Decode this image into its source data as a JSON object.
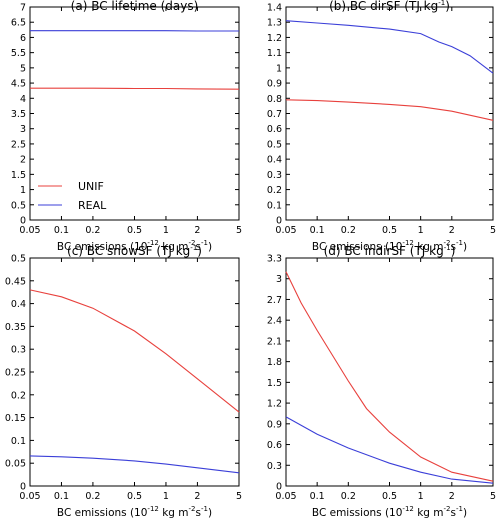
{
  "colors": {
    "unif": "#e8413d",
    "real": "#3b3fd8",
    "axis": "#000000"
  },
  "chart_data": [
    {
      "type": "line",
      "title": "(a) BC lifetime (days)",
      "x_scale": "log",
      "x_ticks": [
        "0.05",
        "0.1",
        "0.2",
        "0.5",
        "1",
        "2",
        "5"
      ],
      "x_tick_values": [
        0.05,
        0.1,
        0.2,
        0.5,
        1,
        2,
        5
      ],
      "xlabel": {
        "prefix": "BC emissions (10",
        "exp1": "-12",
        "mid": " kg m",
        "exp2": "-2",
        "mid2": "s",
        "exp3": "-1",
        "suffix": ")"
      },
      "ylim": [
        0,
        7
      ],
      "y_ticks": [
        "0",
        "0.5",
        "1",
        "1.5",
        "2",
        "2.5",
        "3",
        "3.5",
        "4",
        "4.5",
        "5",
        "5.5",
        "6",
        "6.5",
        "7"
      ],
      "y_tick_values": [
        0,
        0.5,
        1,
        1.5,
        2,
        2.5,
        3,
        3.5,
        4,
        4.5,
        5,
        5.5,
        6,
        6.5,
        7
      ],
      "legend": {
        "position": "bottom-left",
        "entries": [
          "UNIF",
          "REAL"
        ]
      },
      "series": [
        {
          "name": "UNIF",
          "color_key": "unif",
          "x": [
            0.05,
            0.1,
            0.2,
            0.5,
            1,
            2,
            5
          ],
          "y": [
            4.33,
            4.33,
            4.33,
            4.32,
            4.32,
            4.31,
            4.3
          ]
        },
        {
          "name": "REAL",
          "color_key": "real",
          "x": [
            0.05,
            0.1,
            0.2,
            0.5,
            1,
            2,
            5
          ],
          "y": [
            6.22,
            6.22,
            6.22,
            6.22,
            6.22,
            6.21,
            6.21
          ]
        }
      ]
    },
    {
      "type": "line",
      "title": "(b) BC dirSF (TJ kg",
      "title_exp": "-1",
      "title_close": ")",
      "x_scale": "log",
      "x_ticks": [
        "0.05",
        "0.1",
        "0.2",
        "0.5",
        "1",
        "2",
        "5"
      ],
      "x_tick_values": [
        0.05,
        0.1,
        0.2,
        0.5,
        1,
        2,
        5
      ],
      "xlabel": {
        "prefix": "BC emissions (10",
        "exp1": "-12",
        "mid": " kg m",
        "exp2": "-2",
        "mid2": "s",
        "exp3": "-1",
        "suffix": ")"
      },
      "ylim": [
        0,
        1.4
      ],
      "y_ticks": [
        "0",
        "0.1",
        "0.2",
        "0.3",
        "0.4",
        "0.5",
        "0.6",
        "0.7",
        "0.8",
        "0.9",
        "1",
        "1.1",
        "1.2",
        "1.3",
        "1.4"
      ],
      "y_tick_values": [
        0,
        0.1,
        0.2,
        0.3,
        0.4,
        0.5,
        0.6,
        0.7,
        0.8,
        0.9,
        1,
        1.1,
        1.2,
        1.3,
        1.4
      ],
      "series": [
        {
          "name": "UNIF",
          "color_key": "unif",
          "x": [
            0.05,
            0.1,
            0.2,
            0.5,
            1,
            2,
            5
          ],
          "y": [
            0.79,
            0.785,
            0.775,
            0.76,
            0.745,
            0.715,
            0.655
          ]
        },
        {
          "name": "REAL",
          "color_key": "real",
          "x": [
            0.05,
            0.1,
            0.2,
            0.5,
            1,
            1.5,
            2,
            3,
            5
          ],
          "y": [
            1.31,
            1.295,
            1.28,
            1.255,
            1.225,
            1.17,
            1.14,
            1.08,
            0.965
          ]
        }
      ]
    },
    {
      "type": "line",
      "title": "(c) BC snowSF (TJ kg",
      "title_exp": "-1",
      "title_close": ")",
      "x_scale": "log",
      "x_ticks": [
        "0.05",
        "0.1",
        "0.2",
        "0.5",
        "1",
        "2",
        "5"
      ],
      "x_tick_values": [
        0.05,
        0.1,
        0.2,
        0.5,
        1,
        2,
        5
      ],
      "xlabel": {
        "prefix": "BC emissions (10",
        "exp1": "-12",
        "mid": " kg m",
        "exp2": "-2",
        "mid2": "s",
        "exp3": "-1",
        "suffix": ")"
      },
      "ylim": [
        0,
        0.5
      ],
      "y_ticks": [
        "0",
        "0.05",
        "0.1",
        "0.15",
        "0.2",
        "0.25",
        "0.3",
        "0.35",
        "0.4",
        "0.45",
        "0.5"
      ],
      "y_tick_values": [
        0,
        0.05,
        0.1,
        0.15,
        0.2,
        0.25,
        0.3,
        0.35,
        0.4,
        0.45,
        0.5
      ],
      "series": [
        {
          "name": "UNIF",
          "color_key": "unif",
          "x": [
            0.05,
            0.1,
            0.2,
            0.5,
            1,
            2,
            5
          ],
          "y": [
            0.43,
            0.415,
            0.39,
            0.34,
            0.29,
            0.235,
            0.162
          ]
        },
        {
          "name": "REAL",
          "color_key": "real",
          "x": [
            0.05,
            0.1,
            0.2,
            0.5,
            1,
            2,
            5
          ],
          "y": [
            0.066,
            0.064,
            0.061,
            0.055,
            0.048,
            0.04,
            0.029
          ]
        }
      ]
    },
    {
      "type": "line",
      "title": "(d) BC indirSF (TJ kg",
      "title_exp": "-1",
      "title_close": ")",
      "x_scale": "log",
      "x_ticks": [
        "0.05",
        "0.1",
        "0.2",
        "0.5",
        "1",
        "2",
        "5"
      ],
      "x_tick_values": [
        0.05,
        0.1,
        0.2,
        0.5,
        1,
        2,
        5
      ],
      "xlabel": {
        "prefix": "BC emissions (10",
        "exp1": "-12",
        "mid": " kg m",
        "exp2": "-2",
        "mid2": "s",
        "exp3": "-1",
        "suffix": ")"
      },
      "ylim": [
        0,
        3.3
      ],
      "y_ticks": [
        "0",
        "0.3",
        "0.6",
        "0.9",
        "1.2",
        "1.5",
        "1.8",
        "2.1",
        "2.4",
        "2.7",
        "3",
        "3.3"
      ],
      "y_tick_values": [
        0,
        0.3,
        0.6,
        0.9,
        1.2,
        1.5,
        1.8,
        2.1,
        2.4,
        2.7,
        3,
        3.3
      ],
      "series": [
        {
          "name": "UNIF",
          "color_key": "unif",
          "x": [
            0.05,
            0.07,
            0.1,
            0.2,
            0.3,
            0.5,
            1,
            2,
            5
          ],
          "y": [
            3.1,
            2.65,
            2.25,
            1.52,
            1.12,
            0.78,
            0.42,
            0.2,
            0.07
          ]
        },
        {
          "name": "REAL",
          "color_key": "real",
          "x": [
            0.05,
            0.1,
            0.2,
            0.5,
            1,
            2,
            5
          ],
          "y": [
            1.0,
            0.75,
            0.55,
            0.33,
            0.2,
            0.1,
            0.04
          ]
        }
      ]
    }
  ]
}
